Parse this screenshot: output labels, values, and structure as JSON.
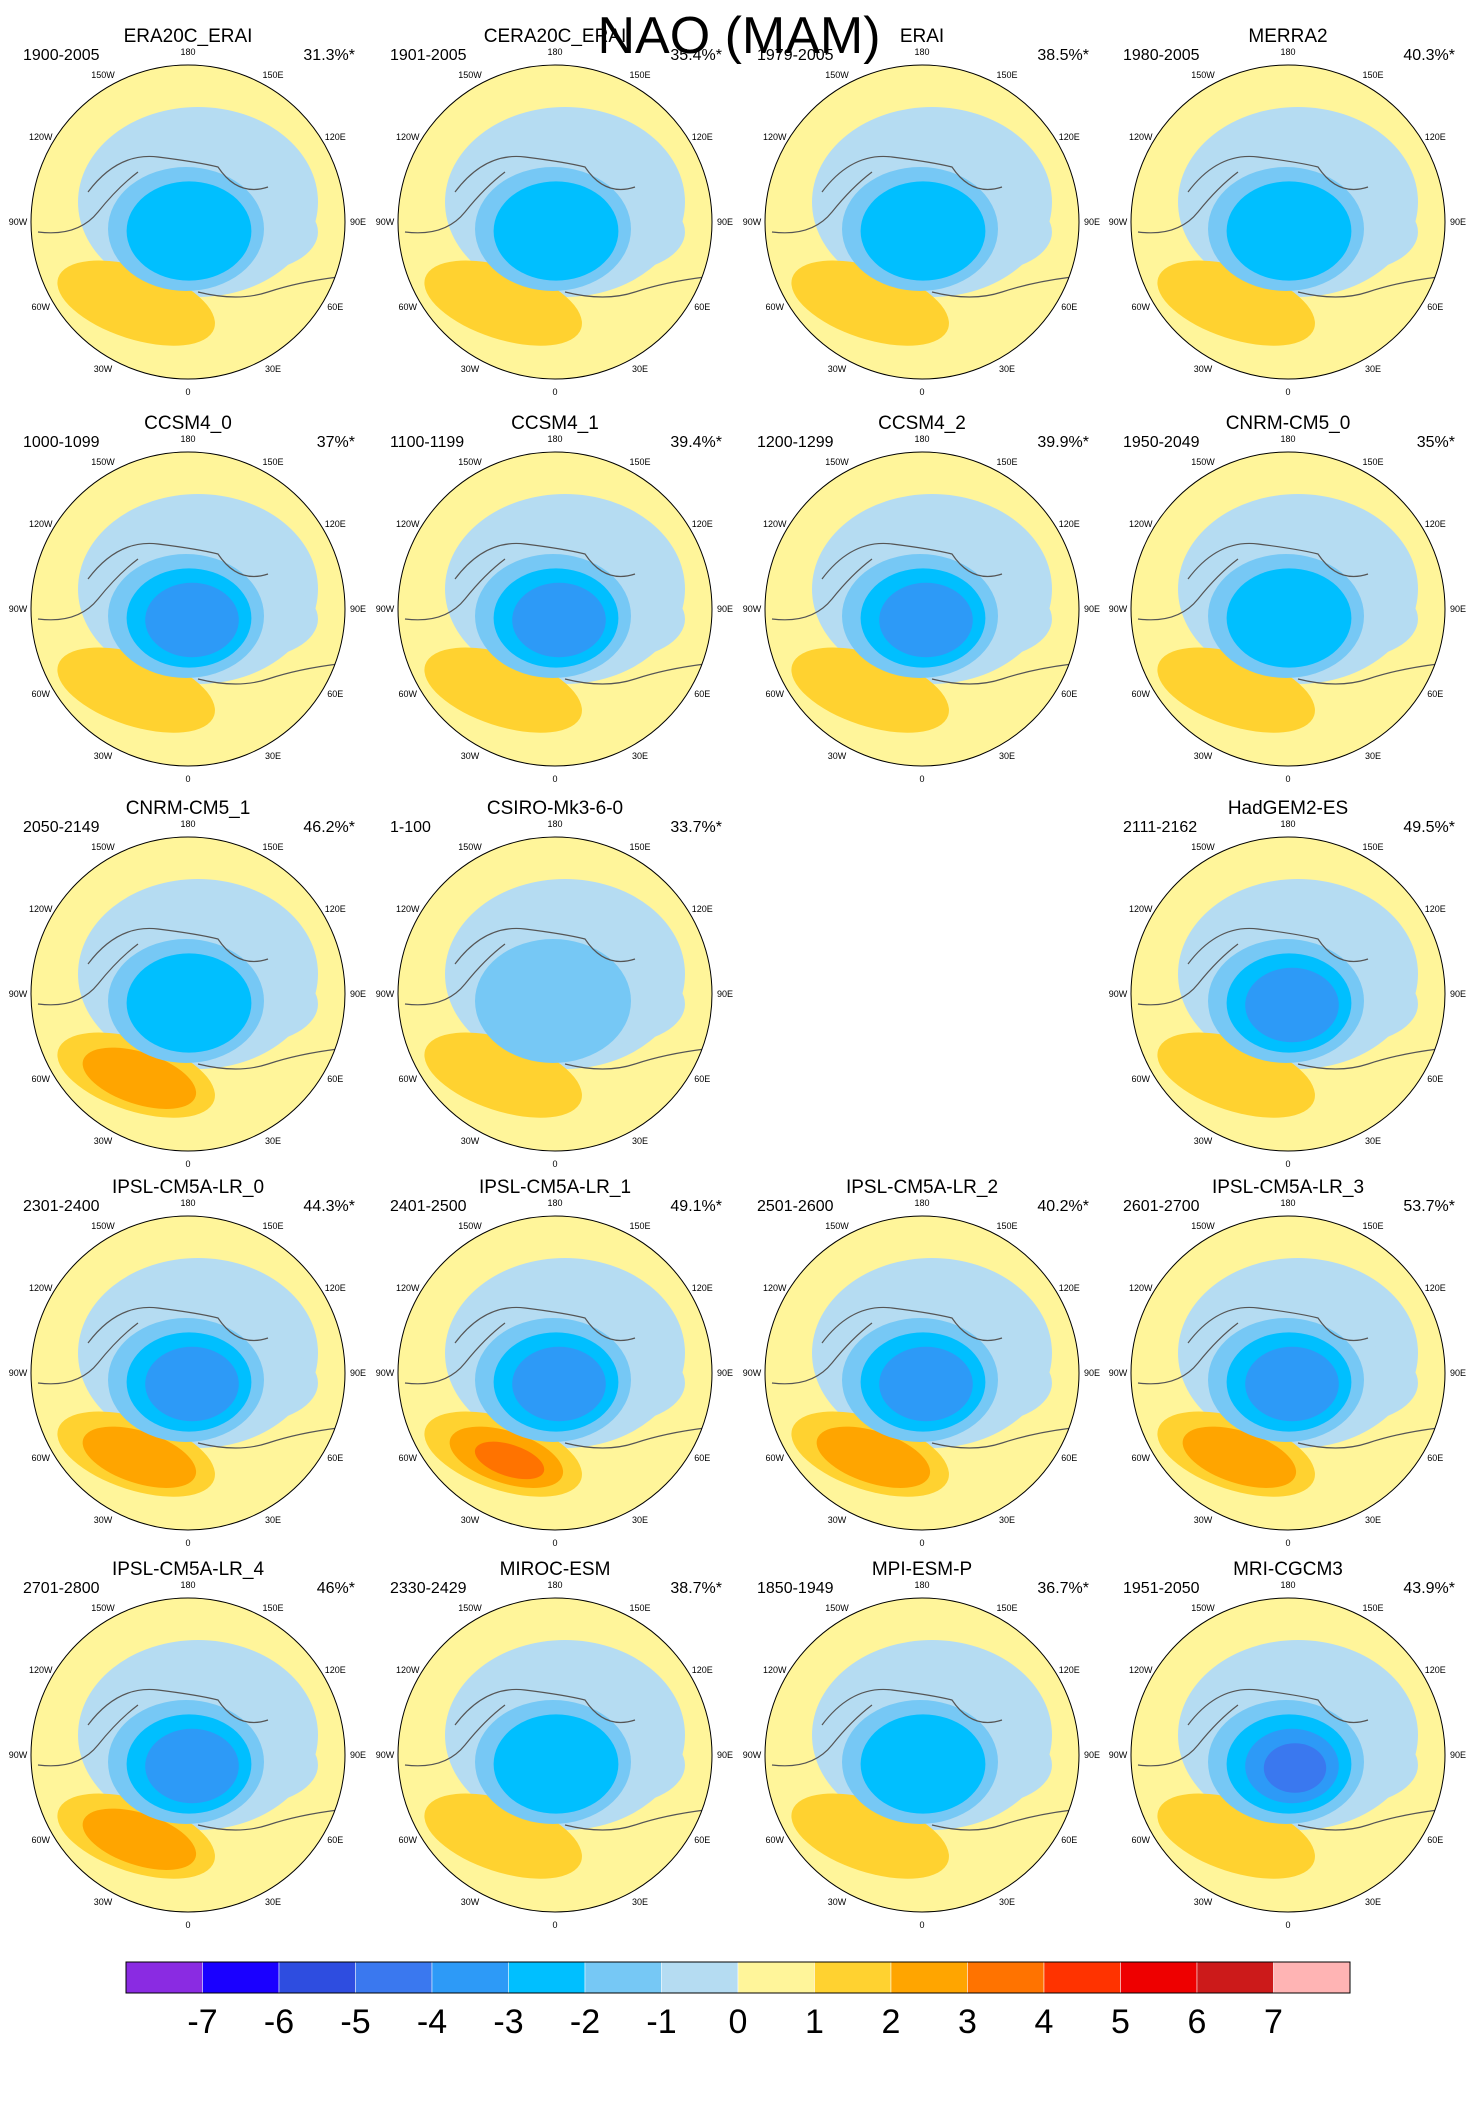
{
  "title": "NAO (MAM)",
  "chart_data": {
    "type": "polar-stereographic-map-grid",
    "title": "NAO (MAM)",
    "projection": "north polar stereographic",
    "lon_labels": [
      "180",
      "150W",
      "150E",
      "120W",
      "120E",
      "90W",
      "90E",
      "60W",
      "60E",
      "30W",
      "30E",
      "0"
    ],
    "colorbar": {
      "tick_labels": [
        "-7",
        "-6",
        "-5",
        "-4",
        "-3",
        "-2",
        "-1",
        "0",
        "1",
        "2",
        "3",
        "4",
        "5",
        "6",
        "7"
      ],
      "colors": [
        "#8a2be2",
        "#1a00ff",
        "#2e4de0",
        "#3a78ef",
        "#2d9af7",
        "#00bfff",
        "#76c8f5",
        "#b5dcf2",
        "#fff59a",
        "#ffd230",
        "#ffa500",
        "#ff7300",
        "#ff3300",
        "#ee0000",
        "#cc1a1a",
        "#ffb4b4"
      ]
    },
    "panels": [
      {
        "name": "ERA20C_ERAI",
        "period": "1900-2005",
        "variance": "31.3%*",
        "neg": 3,
        "pos": 2
      },
      {
        "name": "CERA20C_ERAI",
        "period": "1901-2005",
        "variance": "35.4%*",
        "neg": 3,
        "pos": 2
      },
      {
        "name": "ERAI",
        "period": "1979-2005",
        "variance": "38.5%*",
        "neg": 3,
        "pos": 2
      },
      {
        "name": "MERRA2",
        "period": "1980-2005",
        "variance": "40.3%*",
        "neg": 3,
        "pos": 2
      },
      {
        "name": "CCSM4_0",
        "period": "1000-1099",
        "variance": "37%*",
        "neg": 4,
        "pos": 2
      },
      {
        "name": "CCSM4_1",
        "period": "1100-1199",
        "variance": "39.4%*",
        "neg": 4,
        "pos": 2
      },
      {
        "name": "CCSM4_2",
        "period": "1200-1299",
        "variance": "39.9%*",
        "neg": 4,
        "pos": 2
      },
      {
        "name": "CNRM-CM5_0",
        "period": "1950-2049",
        "variance": "35%*",
        "neg": 3,
        "pos": 2
      },
      {
        "name": "CNRM-CM5_1",
        "period": "2050-2149",
        "variance": "46.2%*",
        "neg": 3,
        "pos": 3
      },
      {
        "name": "CSIRO-Mk3-6-0",
        "period": "1-100",
        "variance": "33.7%*",
        "neg": 2,
        "pos": 2
      },
      null,
      {
        "name": "HadGEM2-ES",
        "period": "2111-2162",
        "variance": "49.5%*",
        "neg": 4,
        "pos": 2
      },
      {
        "name": "IPSL-CM5A-LR_0",
        "period": "2301-2400",
        "variance": "44.3%*",
        "neg": 4,
        "pos": 3
      },
      {
        "name": "IPSL-CM5A-LR_1",
        "period": "2401-2500",
        "variance": "49.1%*",
        "neg": 4,
        "pos": 4
      },
      {
        "name": "IPSL-CM5A-LR_2",
        "period": "2501-2600",
        "variance": "40.2%*",
        "neg": 4,
        "pos": 3
      },
      {
        "name": "IPSL-CM5A-LR_3",
        "period": "2601-2700",
        "variance": "53.7%*",
        "neg": 4,
        "pos": 3
      },
      {
        "name": "IPSL-CM5A-LR_4",
        "period": "2701-2800",
        "variance": "46%*",
        "neg": 4,
        "pos": 3
      },
      {
        "name": "MIROC-ESM",
        "period": "2330-2429",
        "variance": "38.7%*",
        "neg": 3,
        "pos": 2
      },
      {
        "name": "MPI-ESM-P",
        "period": "1850-1949",
        "variance": "36.7%*",
        "neg": 3,
        "pos": 2
      },
      {
        "name": "MRI-CGCM3",
        "period": "1951-2050",
        "variance": "43.9%*",
        "neg": 5,
        "pos": 2
      }
    ]
  }
}
